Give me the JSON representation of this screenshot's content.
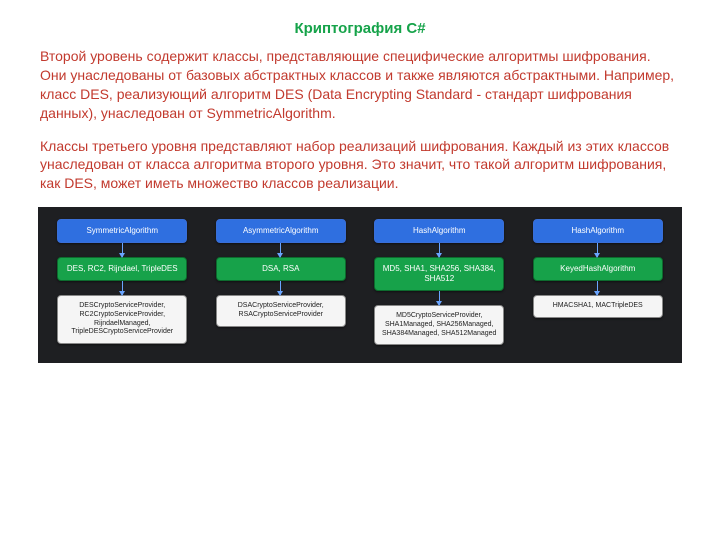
{
  "title": {
    "text": "Криптография C#",
    "color": "#16a34a"
  },
  "paragraphs": {
    "p1": {
      "text": "Второй уровень содержит классы, представляющие специфические алгоритмы шифрования. Они унаследованы от базовых абстрактных классов и также являются абстрактными. Например, класс DES, реализующий алгоритм DES (Data Encrypting Standard - стандарт шифрования данных), унаследован от SymmetricAlgorithm.",
      "color": "#c23a2e"
    },
    "p2": {
      "text": "Классы третьего уровня представляют набор реализаций шифрования. Каждый из этих классов унаследован от класса алгоритма второго уровня. Это значит, что такой алгоритм шифрования, как DES, может иметь множество классов реализации.",
      "color": "#c23a2e"
    }
  },
  "diagram": {
    "background": "#1e1f22",
    "blue_bg": "#2f6fe0",
    "green_bg": "#17a24a",
    "white_bg": "#f5f5f5",
    "columns": [
      {
        "l1": "SymmetricAlgorithm",
        "l2": "DES, RC2, Rijndael, TripleDES",
        "l3": "DESCryptoServiceProvider, RC2CryptoServiceProvider, RijndaelManaged, TripleDESCryptoServiceProvider"
      },
      {
        "l1": "AsymmetricAlgorithm",
        "l2": "DSA, RSA",
        "l3": "DSACryptoServiceProvider, RSACryptoServiceProvider"
      },
      {
        "l1": "HashAlgorithm",
        "l2": "MD5, SHA1, SHA256, SHA384, SHA512",
        "l3": "MD5CryptoServiceProvider, SHA1Managed, SHA256Managed, SHA384Managed, SHA512Managed"
      },
      {
        "l1": "HashAlgorithm",
        "l2": "KeyedHashAlgorithm",
        "l3": "HMACSHA1, MACTripleDES"
      }
    ]
  }
}
